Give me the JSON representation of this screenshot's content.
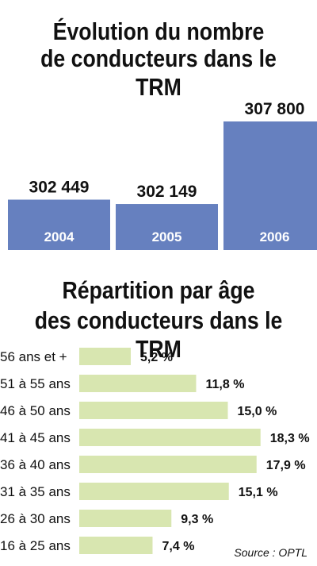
{
  "chart_data": [
    {
      "type": "bar",
      "title": "Évolution du nombre de conducteurs dans le TRM",
      "title_lines": [
        "Évolution du nombre",
        "de conducteurs dans le TRM"
      ],
      "categories": [
        "2004",
        "2005",
        "2006"
      ],
      "values": [
        302449,
        302149,
        307800
      ],
      "value_labels": [
        "302 449",
        "302 149",
        "307 800"
      ],
      "color": "#6680bf",
      "grid": false
    },
    {
      "type": "bar",
      "orientation": "horizontal",
      "title": "Répartition par âge des conducteurs dans le TRM",
      "title_lines": [
        "Répartition par âge",
        "des conducteurs dans le TRM"
      ],
      "categories": [
        "56 ans et +",
        "51 à 55 ans",
        "46 à 50 ans",
        "41 à 45 ans",
        "36 à 40 ans",
        "31 à 35 ans",
        "26 à 30 ans",
        "16 à 25 ans"
      ],
      "values": [
        5.2,
        11.8,
        15.0,
        18.3,
        17.9,
        15.1,
        9.3,
        7.4
      ],
      "value_labels": [
        "5,2 %",
        "11,8 %",
        "15,0 %",
        "18,3 %",
        "17,9 %",
        "15,1 %",
        "9,3 %",
        "7,4 %"
      ],
      "color": "#d8e6b0",
      "grid": false
    }
  ],
  "source": "Source :  OPTL"
}
